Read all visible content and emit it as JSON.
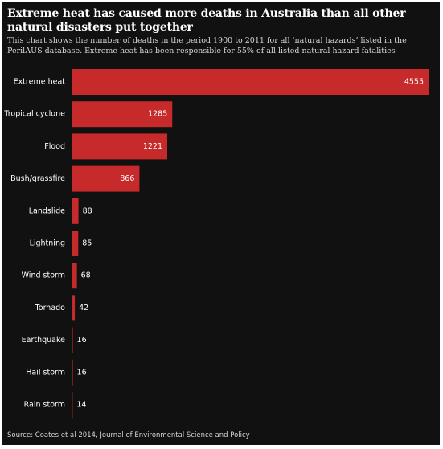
{
  "title": "Extreme heat has caused more deaths in Australia than all other natural disasters put together",
  "subtitle": "This chart shows the number of deaths in the period 1900 to 2011 for all ‘natural hazards’ listed in the PerilAUS database. Extreme heat has been responsible for 55% of all listed natural hazard fatalities",
  "source": "Source: Coates et al 2014, Journal of Environmental Science and Policy",
  "colors": {
    "background": "#111111",
    "bar": "#c62a2a",
    "text": "#ffffff",
    "muted_text": "#d6d6d6"
  },
  "chart_data": {
    "type": "bar",
    "orientation": "horizontal",
    "categories": [
      "Extreme heat",
      "Tropical cyclone",
      "Flood",
      "Bush/grassfire",
      "Landslide",
      "Lightning",
      "Wind storm",
      "Tornado",
      "Earthquake",
      "Hail storm",
      "Rain storm"
    ],
    "values": [
      4555,
      1285,
      1221,
      866,
      88,
      85,
      68,
      42,
      16,
      16,
      14
    ],
    "data_labels": [
      "4555",
      "1285",
      "1221",
      "866",
      "88",
      "85",
      "68",
      "42",
      "16",
      "16",
      "14"
    ],
    "xlim": [
      0,
      4555
    ],
    "grid": false,
    "legend": "none"
  }
}
